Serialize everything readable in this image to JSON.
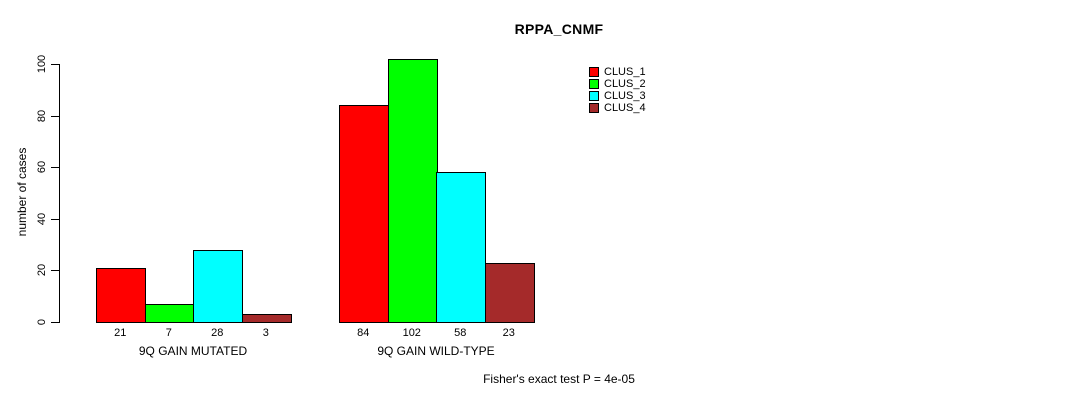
{
  "chart_data": {
    "type": "bar",
    "title": "RPPA_CNMF",
    "ylabel": "number of cases",
    "xlabel": "",
    "ylim": [
      0,
      100
    ],
    "yticks": [
      0,
      20,
      40,
      60,
      80,
      100
    ],
    "categories": [
      "9Q GAIN MUTATED",
      "9Q GAIN WILD-TYPE"
    ],
    "series": [
      {
        "name": "CLUS_1",
        "color": "#FF0000",
        "values": [
          21,
          84
        ]
      },
      {
        "name": "CLUS_2",
        "color": "#00FF00",
        "values": [
          7,
          102
        ]
      },
      {
        "name": "CLUS_3",
        "color": "#00FFFF",
        "values": [
          28,
          58
        ]
      },
      {
        "name": "CLUS_4",
        "color": "#A52A2A",
        "values": [
          3,
          23
        ]
      }
    ],
    "bar_value_labels": true,
    "legend_position": "top-right",
    "grid": false,
    "annotation": "Fisher's exact test P = 4e-05"
  }
}
